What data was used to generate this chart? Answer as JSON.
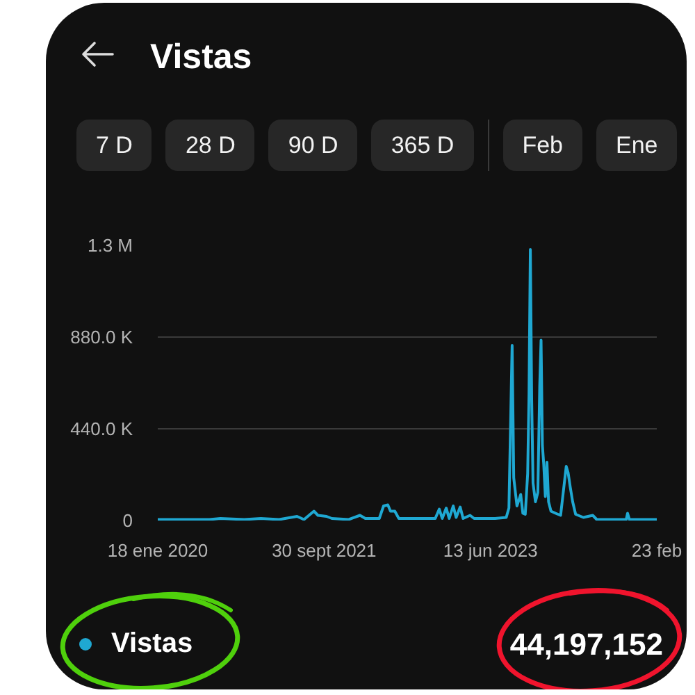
{
  "chart_data": {
    "type": "line",
    "title": "Vistas",
    "annotations": [
      "7 D",
      "28 D",
      "90 D",
      "365 D",
      "Feb",
      "Ene",
      "44,197,152"
    ],
    "x": [
      "2020-01-18",
      "2020-04-15",
      "2020-07-29",
      "2020-09-08",
      "2020-12-06",
      "2021-02-06",
      "2021-04-15",
      "2021-06-21",
      "2021-07-17",
      "2021-08-23",
      "2021-09-07",
      "2021-10-09",
      "2021-10-29",
      "2021-12-31",
      "2022-02-11",
      "2022-03-03",
      "2022-04-24",
      "2022-05-10",
      "2022-05-26",
      "2022-06-05",
      "2022-06-21",
      "2022-07-06",
      "2022-09-17",
      "2022-11-19",
      "2022-12-04",
      "2022-12-15",
      "2022-12-30",
      "2023-01-10",
      "2023-01-25",
      "2023-02-05",
      "2023-02-20",
      "2023-03-03",
      "2023-03-29",
      "2023-04-13",
      "2023-06-30",
      "2023-08-11",
      "2023-08-21",
      "2023-09-02",
      "2023-09-08",
      "2023-09-20",
      "2023-10-04",
      "2023-10-12",
      "2023-10-21",
      "2023-10-30",
      "2023-11-04",
      "2023-11-09",
      "2023-11-14",
      "2023-11-19",
      "2023-11-28",
      "2023-12-07",
      "2023-12-14",
      "2023-12-19",
      "2023-12-24",
      "2023-12-29",
      "2024-01-04",
      "2024-01-10",
      "2024-01-16",
      "2024-01-25",
      "2024-02-11",
      "2024-03-01",
      "2024-03-22",
      "2024-03-29",
      "2024-04-06",
      "2024-04-15",
      "2024-04-26",
      "2024-05-25",
      "2024-06-29",
      "2024-07-14",
      "2024-11-01",
      "2024-11-06",
      "2024-11-13",
      "2025-02-23"
    ],
    "series": [
      {
        "name": "Vistas",
        "color": "#1fa8d2",
        "values": [
          5000,
          5000,
          5000,
          10000,
          5000,
          10000,
          5000,
          20000,
          5000,
          45000,
          25000,
          20000,
          10000,
          5000,
          25000,
          10000,
          10000,
          70000,
          75000,
          45000,
          45000,
          10000,
          10000,
          10000,
          55000,
          10000,
          60000,
          10000,
          70000,
          15000,
          65000,
          10000,
          25000,
          10000,
          10000,
          15000,
          60000,
          840000,
          205000,
          70000,
          125000,
          35000,
          30000,
          225000,
          605000,
          1300000,
          580000,
          180000,
          90000,
          135000,
          645000,
          865000,
          360000,
          270000,
          115000,
          280000,
          90000,
          45000,
          35000,
          25000,
          260000,
          230000,
          160000,
          90000,
          30000,
          15000,
          25000,
          5000,
          5000,
          35000,
          5000,
          5000
        ]
      }
    ],
    "xlim": [
      "2020-01-18",
      "2025-02-23"
    ],
    "xticks": [
      {
        "value": "2020-01-18",
        "label": "18 ene 2020"
      },
      {
        "value": "2021-09-30",
        "label": "30 sept 2021"
      },
      {
        "value": "2023-06-13",
        "label": "13 jun 2023"
      },
      {
        "value": "2025-02-23",
        "label": "23 feb"
      }
    ],
    "ylim": [
      0,
      1320000
    ],
    "yticks": [
      0,
      {
        "value": 440000,
        "label": "440.0 K"
      },
      {
        "value": 880000,
        "label": "880.0 K"
      },
      {
        "value": 1320000,
        "label": "1.3 M"
      }
    ],
    "grid": "y",
    "legend": "bottom left"
  }
}
